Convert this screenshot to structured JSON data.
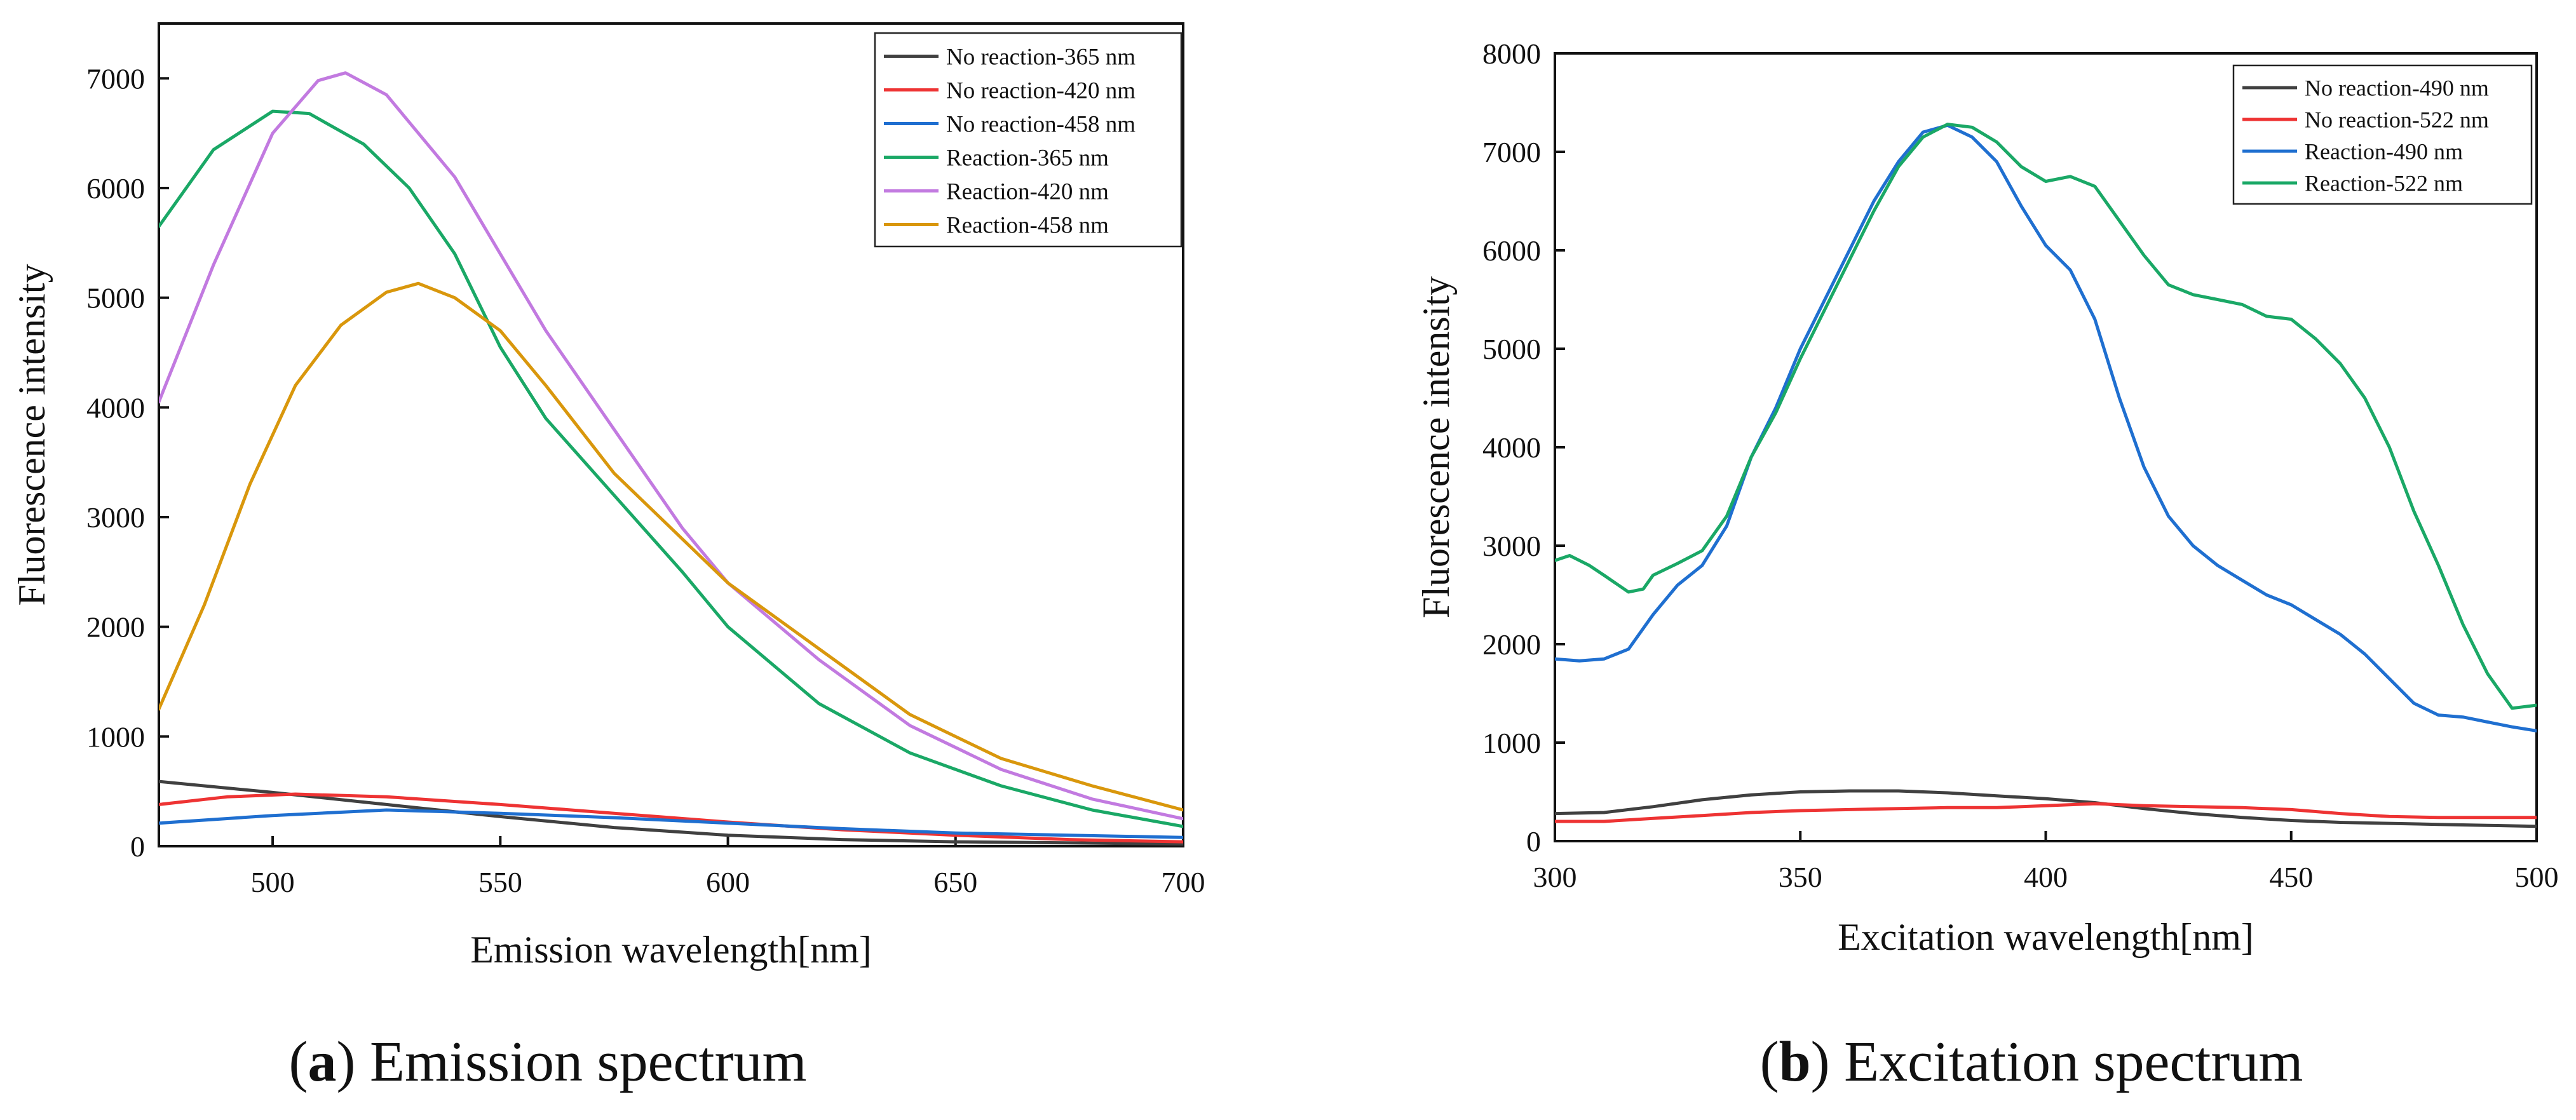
{
  "chart_data": [
    {
      "type": "line",
      "panel_letter": "a",
      "caption_text": "Emission spectrum",
      "xlabel": "Emission wavelength[nm]",
      "ylabel": "Fluorescence intensity",
      "xlim": [
        475,
        700
      ],
      "ylim": [
        0,
        7500
      ],
      "xticks": [
        500,
        550,
        600,
        650,
        700
      ],
      "yticks": [
        0,
        1000,
        2000,
        3000,
        4000,
        5000,
        6000,
        7000
      ],
      "grid": false,
      "legend_position": "top-right",
      "series": [
        {
          "name": "No reaction-365 nm",
          "color": "#404040",
          "points": [
            [
              475,
              590
            ],
            [
              500,
              490
            ],
            [
              525,
              380
            ],
            [
              550,
              270
            ],
            [
              575,
              170
            ],
            [
              600,
              100
            ],
            [
              625,
              60
            ],
            [
              650,
              40
            ],
            [
              675,
              30
            ],
            [
              700,
              20
            ]
          ]
        },
        {
          "name": "No reaction-420 nm",
          "color": "#ee3333",
          "points": [
            [
              475,
              380
            ],
            [
              490,
              450
            ],
            [
              505,
              475
            ],
            [
              525,
              450
            ],
            [
              550,
              380
            ],
            [
              575,
              300
            ],
            [
              600,
              220
            ],
            [
              625,
              150
            ],
            [
              650,
              100
            ],
            [
              675,
              60
            ],
            [
              700,
              40
            ]
          ]
        },
        {
          "name": "No reaction-458 nm",
          "color": "#1f6fd0",
          "points": [
            [
              475,
              210
            ],
            [
              500,
              280
            ],
            [
              525,
              330
            ],
            [
              550,
              300
            ],
            [
              575,
              260
            ],
            [
              600,
              210
            ],
            [
              625,
              160
            ],
            [
              650,
              120
            ],
            [
              675,
              100
            ],
            [
              700,
              80
            ]
          ]
        },
        {
          "name": "Reaction-365 nm",
          "color": "#1aa866",
          "points": [
            [
              475,
              5650
            ],
            [
              487,
              6350
            ],
            [
              500,
              6700
            ],
            [
              508,
              6680
            ],
            [
              520,
              6400
            ],
            [
              530,
              6000
            ],
            [
              540,
              5400
            ],
            [
              550,
              4550
            ],
            [
              560,
              3900
            ],
            [
              575,
              3200
            ],
            [
              590,
              2500
            ],
            [
              600,
              2000
            ],
            [
              620,
              1300
            ],
            [
              640,
              850
            ],
            [
              660,
              550
            ],
            [
              680,
              330
            ],
            [
              700,
              180
            ]
          ]
        },
        {
          "name": "Reaction-420 nm",
          "color": "#c27ae0",
          "points": [
            [
              475,
              4050
            ],
            [
              487,
              5300
            ],
            [
              500,
              6500
            ],
            [
              510,
              6980
            ],
            [
              516,
              7050
            ],
            [
              525,
              6850
            ],
            [
              540,
              6100
            ],
            [
              550,
              5400
            ],
            [
              560,
              4700
            ],
            [
              575,
              3800
            ],
            [
              590,
              2900
            ],
            [
              600,
              2400
            ],
            [
              620,
              1700
            ],
            [
              640,
              1100
            ],
            [
              660,
              700
            ],
            [
              680,
              430
            ],
            [
              700,
              250
            ]
          ]
        },
        {
          "name": "Reaction-458 nm",
          "color": "#d9970c",
          "points": [
            [
              475,
              1250
            ],
            [
              485,
              2200
            ],
            [
              495,
              3300
            ],
            [
              505,
              4200
            ],
            [
              515,
              4750
            ],
            [
              525,
              5050
            ],
            [
              532,
              5130
            ],
            [
              540,
              5000
            ],
            [
              550,
              4700
            ],
            [
              560,
              4200
            ],
            [
              575,
              3400
            ],
            [
              590,
              2800
            ],
            [
              600,
              2400
            ],
            [
              620,
              1800
            ],
            [
              640,
              1200
            ],
            [
              660,
              800
            ],
            [
              680,
              550
            ],
            [
              700,
              330
            ]
          ]
        }
      ]
    },
    {
      "type": "line",
      "panel_letter": "b",
      "caption_text": "Excitation spectrum",
      "xlabel": "Excitation wavelength[nm]",
      "ylabel": "Fluorescence intensity",
      "xlim": [
        300,
        500
      ],
      "ylim": [
        0,
        8000
      ],
      "xticks": [
        300,
        350,
        400,
        450,
        500
      ],
      "yticks": [
        0,
        1000,
        2000,
        3000,
        4000,
        5000,
        6000,
        7000,
        8000
      ],
      "grid": false,
      "legend_position": "top-right",
      "series": [
        {
          "name": "No reaction-490 nm",
          "color": "#404040",
          "points": [
            [
              300,
              280
            ],
            [
              310,
              290
            ],
            [
              320,
              350
            ],
            [
              330,
              420
            ],
            [
              340,
              470
            ],
            [
              350,
              500
            ],
            [
              360,
              510
            ],
            [
              370,
              510
            ],
            [
              380,
              490
            ],
            [
              390,
              460
            ],
            [
              400,
              430
            ],
            [
              410,
              390
            ],
            [
              420,
              330
            ],
            [
              430,
              280
            ],
            [
              440,
              240
            ],
            [
              450,
              210
            ],
            [
              460,
              190
            ],
            [
              470,
              180
            ],
            [
              480,
              170
            ],
            [
              490,
              160
            ],
            [
              500,
              150
            ]
          ]
        },
        {
          "name": "No reaction-522 nm",
          "color": "#ee3333",
          "points": [
            [
              300,
              200
            ],
            [
              310,
              200
            ],
            [
              320,
              230
            ],
            [
              330,
              260
            ],
            [
              340,
              290
            ],
            [
              350,
              310
            ],
            [
              360,
              320
            ],
            [
              370,
              330
            ],
            [
              380,
              340
            ],
            [
              390,
              340
            ],
            [
              400,
              360
            ],
            [
              410,
              380
            ],
            [
              420,
              360
            ],
            [
              430,
              350
            ],
            [
              440,
              340
            ],
            [
              450,
              320
            ],
            [
              460,
              280
            ],
            [
              470,
              250
            ],
            [
              480,
              240
            ],
            [
              490,
              240
            ],
            [
              500,
              240
            ]
          ]
        },
        {
          "name": "Reaction-490 nm",
          "color": "#1f6fd0",
          "points": [
            [
              300,
              1850
            ],
            [
              305,
              1830
            ],
            [
              310,
              1850
            ],
            [
              315,
              1950
            ],
            [
              320,
              2300
            ],
            [
              325,
              2600
            ],
            [
              330,
              2800
            ],
            [
              335,
              3200
            ],
            [
              340,
              3900
            ],
            [
              345,
              4400
            ],
            [
              350,
              5000
            ],
            [
              355,
              5500
            ],
            [
              360,
              6000
            ],
            [
              365,
              6500
            ],
            [
              370,
              6900
            ],
            [
              375,
              7200
            ],
            [
              380,
              7270
            ],
            [
              385,
              7150
            ],
            [
              390,
              6900
            ],
            [
              395,
              6450
            ],
            [
              400,
              6050
            ],
            [
              405,
              5800
            ],
            [
              410,
              5300
            ],
            [
              415,
              4500
            ],
            [
              420,
              3800
            ],
            [
              425,
              3300
            ],
            [
              430,
              3000
            ],
            [
              435,
              2800
            ],
            [
              440,
              2650
            ],
            [
              445,
              2500
            ],
            [
              450,
              2400
            ],
            [
              455,
              2250
            ],
            [
              460,
              2100
            ],
            [
              465,
              1900
            ],
            [
              470,
              1650
            ],
            [
              475,
              1400
            ],
            [
              480,
              1280
            ],
            [
              485,
              1260
            ],
            [
              490,
              1210
            ],
            [
              495,
              1160
            ],
            [
              500,
              1120
            ]
          ]
        },
        {
          "name": "Reaction-522 nm",
          "color": "#1aa866",
          "points": [
            [
              300,
              2850
            ],
            [
              303,
              2900
            ],
            [
              307,
              2800
            ],
            [
              310,
              2700
            ],
            [
              315,
              2530
            ],
            [
              318,
              2560
            ],
            [
              320,
              2700
            ],
            [
              325,
              2820
            ],
            [
              330,
              2950
            ],
            [
              335,
              3300
            ],
            [
              340,
              3900
            ],
            [
              345,
              4350
            ],
            [
              350,
              4900
            ],
            [
              355,
              5400
            ],
            [
              360,
              5900
            ],
            [
              365,
              6400
            ],
            [
              370,
              6850
            ],
            [
              375,
              7150
            ],
            [
              380,
              7280
            ],
            [
              385,
              7250
            ],
            [
              390,
              7100
            ],
            [
              395,
              6850
            ],
            [
              400,
              6700
            ],
            [
              405,
              6750
            ],
            [
              410,
              6650
            ],
            [
              415,
              6300
            ],
            [
              420,
              5950
            ],
            [
              425,
              5650
            ],
            [
              430,
              5550
            ],
            [
              435,
              5500
            ],
            [
              440,
              5450
            ],
            [
              445,
              5330
            ],
            [
              450,
              5300
            ],
            [
              455,
              5100
            ],
            [
              460,
              4850
            ],
            [
              465,
              4500
            ],
            [
              470,
              4000
            ],
            [
              475,
              3350
            ],
            [
              480,
              2800
            ],
            [
              485,
              2200
            ],
            [
              490,
              1700
            ],
            [
              495,
              1350
            ],
            [
              500,
              1380
            ]
          ]
        }
      ]
    }
  ]
}
